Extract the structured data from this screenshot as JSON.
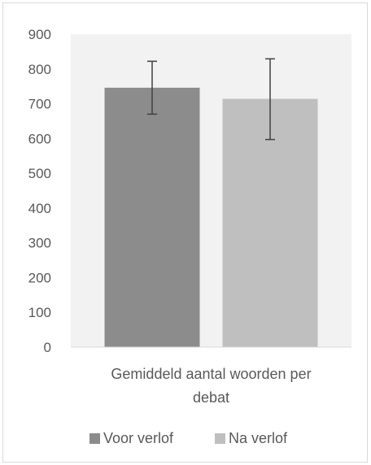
{
  "chart_data": {
    "type": "bar",
    "categories": [
      "Gemiddeld aantal woorden per debat"
    ],
    "category_lines": [
      "Gemiddeld aantal woorden per",
      "debat"
    ],
    "series": [
      {
        "name": "Voor verlof",
        "values": [
          746
        ],
        "error_low": [
          670
        ],
        "error_high": [
          822
        ],
        "color": "#8c8c8c"
      },
      {
        "name": "Na verlof",
        "values": [
          714
        ],
        "error_low": [
          597
        ],
        "error_high": [
          829
        ],
        "color": "#bfbfbf"
      }
    ],
    "ylim": [
      0,
      900
    ],
    "yticks": [
      0,
      100,
      200,
      300,
      400,
      500,
      600,
      700,
      800,
      900
    ],
    "title": "",
    "xlabel": "",
    "ylabel": "",
    "legend_position": "bottom",
    "plot_background": "#f2f2f2",
    "grid": false
  }
}
